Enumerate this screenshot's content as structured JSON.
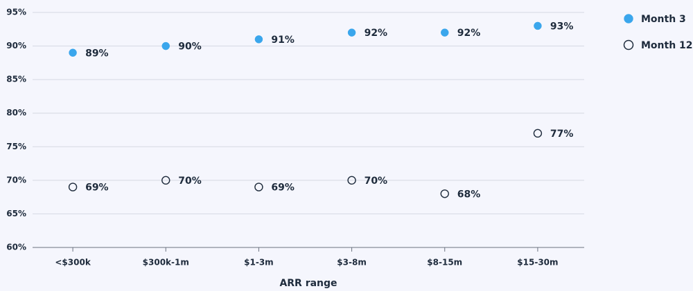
{
  "chart_data": {
    "type": "dot",
    "x_label": "ARR range",
    "categories": [
      "<$300k",
      "$300k-1m",
      "$1-3m",
      "$3-8m",
      "$8-15m",
      "$15-30m"
    ],
    "series": [
      {
        "name": "Month 3",
        "color": "#3aa6ec",
        "marker": "filled",
        "values": [
          89,
          90,
          91,
          92,
          92,
          93
        ],
        "value_labels": [
          "89%",
          "90%",
          "91%",
          "92%",
          "92%",
          "93%"
        ]
      },
      {
        "name": "Month 12",
        "color": "#1e2b3c",
        "marker": "hollow",
        "values": [
          69,
          70,
          69,
          70,
          68,
          77
        ],
        "value_labels": [
          "69%",
          "70%",
          "69%",
          "70%",
          "68%",
          "77%"
        ]
      }
    ],
    "ylim": [
      60,
      95
    ],
    "yticks": [
      {
        "value": 60,
        "label": "60%"
      },
      {
        "value": 65,
        "label": "65%"
      },
      {
        "value": 70,
        "label": "70%"
      },
      {
        "value": 75,
        "label": "75%"
      },
      {
        "value": 80,
        "label": "80%"
      },
      {
        "value": 85,
        "label": "85%"
      },
      {
        "value": 90,
        "label": "90%"
      },
      {
        "value": 95,
        "label": "95%"
      }
    ],
    "grid": true,
    "legend": "top-right"
  }
}
